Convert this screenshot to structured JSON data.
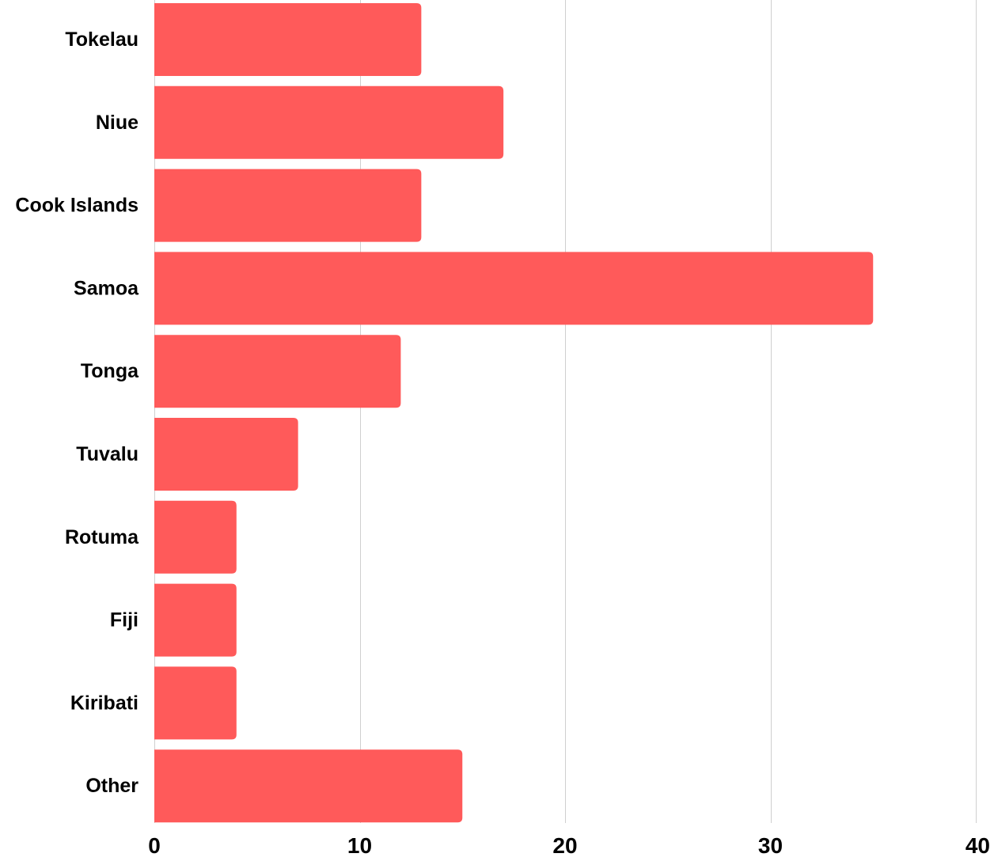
{
  "chart_data": {
    "type": "bar",
    "orientation": "horizontal",
    "title": "",
    "xlabel": "",
    "ylabel": "",
    "categories": [
      "Tokelau",
      "Niue",
      "Cook Islands",
      "Samoa",
      "Tonga",
      "Tuvalu",
      "Rotuma",
      "Fiji",
      "Kiribati",
      "Other"
    ],
    "values": [
      13,
      17,
      13,
      35,
      12,
      7,
      4,
      4,
      4,
      15
    ],
    "xlim": [
      0,
      40
    ],
    "xticks": [
      0,
      10,
      20,
      30,
      40
    ],
    "xtick_labels": [
      "0",
      "10",
      "20",
      "30",
      "40"
    ],
    "grid": "vertical",
    "legend": "none",
    "bar_color": "#ff5a5a"
  }
}
